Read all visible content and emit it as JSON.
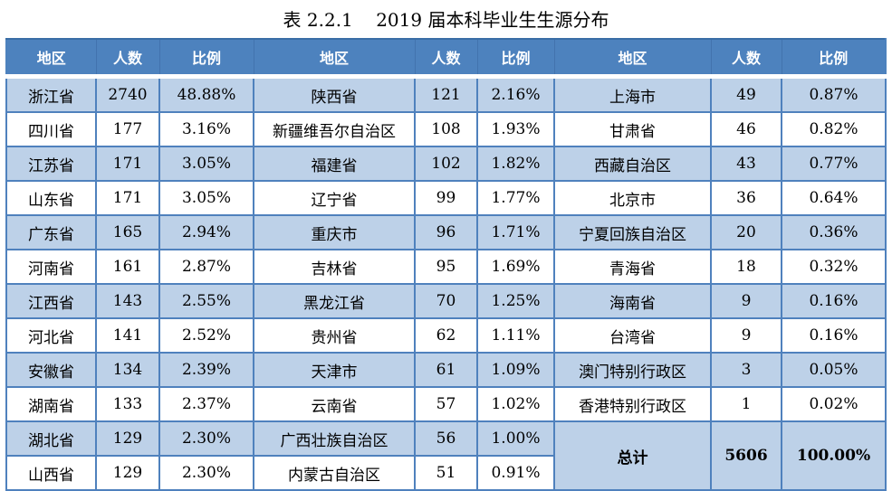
{
  "title": "表 2.2.1    2019 届本科毕业生生源分布",
  "colors": {
    "header_bg": "#4d82be",
    "header_text": "#ffffff",
    "row_stripe": "#bdd1e8",
    "row_plain": "#ffffff",
    "grid_border": "#4f81bd",
    "body_text": "#000000"
  },
  "table": {
    "headers": [
      "地区",
      "人数",
      "比例",
      "地区",
      "人数",
      "比例",
      "地区",
      "人数",
      "比例"
    ],
    "rows": [
      [
        "浙江省",
        "2740",
        "48.88%",
        "陕西省",
        "121",
        "2.16%",
        "上海市",
        "49",
        "0.87%"
      ],
      [
        "四川省",
        "177",
        "3.16%",
        "新疆维吾尔自治区",
        "108",
        "1.93%",
        "甘肃省",
        "46",
        "0.82%"
      ],
      [
        "江苏省",
        "171",
        "3.05%",
        "福建省",
        "102",
        "1.82%",
        "西藏自治区",
        "43",
        "0.77%"
      ],
      [
        "山东省",
        "171",
        "3.05%",
        "辽宁省",
        "99",
        "1.77%",
        "北京市",
        "36",
        "0.64%"
      ],
      [
        "广东省",
        "165",
        "2.94%",
        "重庆市",
        "96",
        "1.71%",
        "宁夏回族自治区",
        "20",
        "0.36%"
      ],
      [
        "河南省",
        "161",
        "2.87%",
        "吉林省",
        "95",
        "1.69%",
        "青海省",
        "18",
        "0.32%"
      ],
      [
        "江西省",
        "143",
        "2.55%",
        "黑龙江省",
        "70",
        "1.25%",
        "海南省",
        "9",
        "0.16%"
      ],
      [
        "河北省",
        "141",
        "2.52%",
        "贵州省",
        "62",
        "1.11%",
        "台湾省",
        "9",
        "0.16%"
      ],
      [
        "安徽省",
        "134",
        "2.39%",
        "天津市",
        "61",
        "1.09%",
        "澳门特别行政区",
        "3",
        "0.05%"
      ],
      [
        "湖南省",
        "133",
        "2.37%",
        "云南省",
        "57",
        "1.02%",
        "香港特别行政区",
        "1",
        "0.02%"
      ],
      [
        "湖北省",
        "129",
        "2.30%",
        "广西壮族自治区",
        "56",
        "1.00%"
      ],
      [
        "山西省",
        "129",
        "2.30%",
        "内蒙古自治区",
        "51",
        "0.91%"
      ]
    ],
    "total": {
      "label": "总计",
      "count": "5606",
      "percent": "100.00%"
    }
  }
}
